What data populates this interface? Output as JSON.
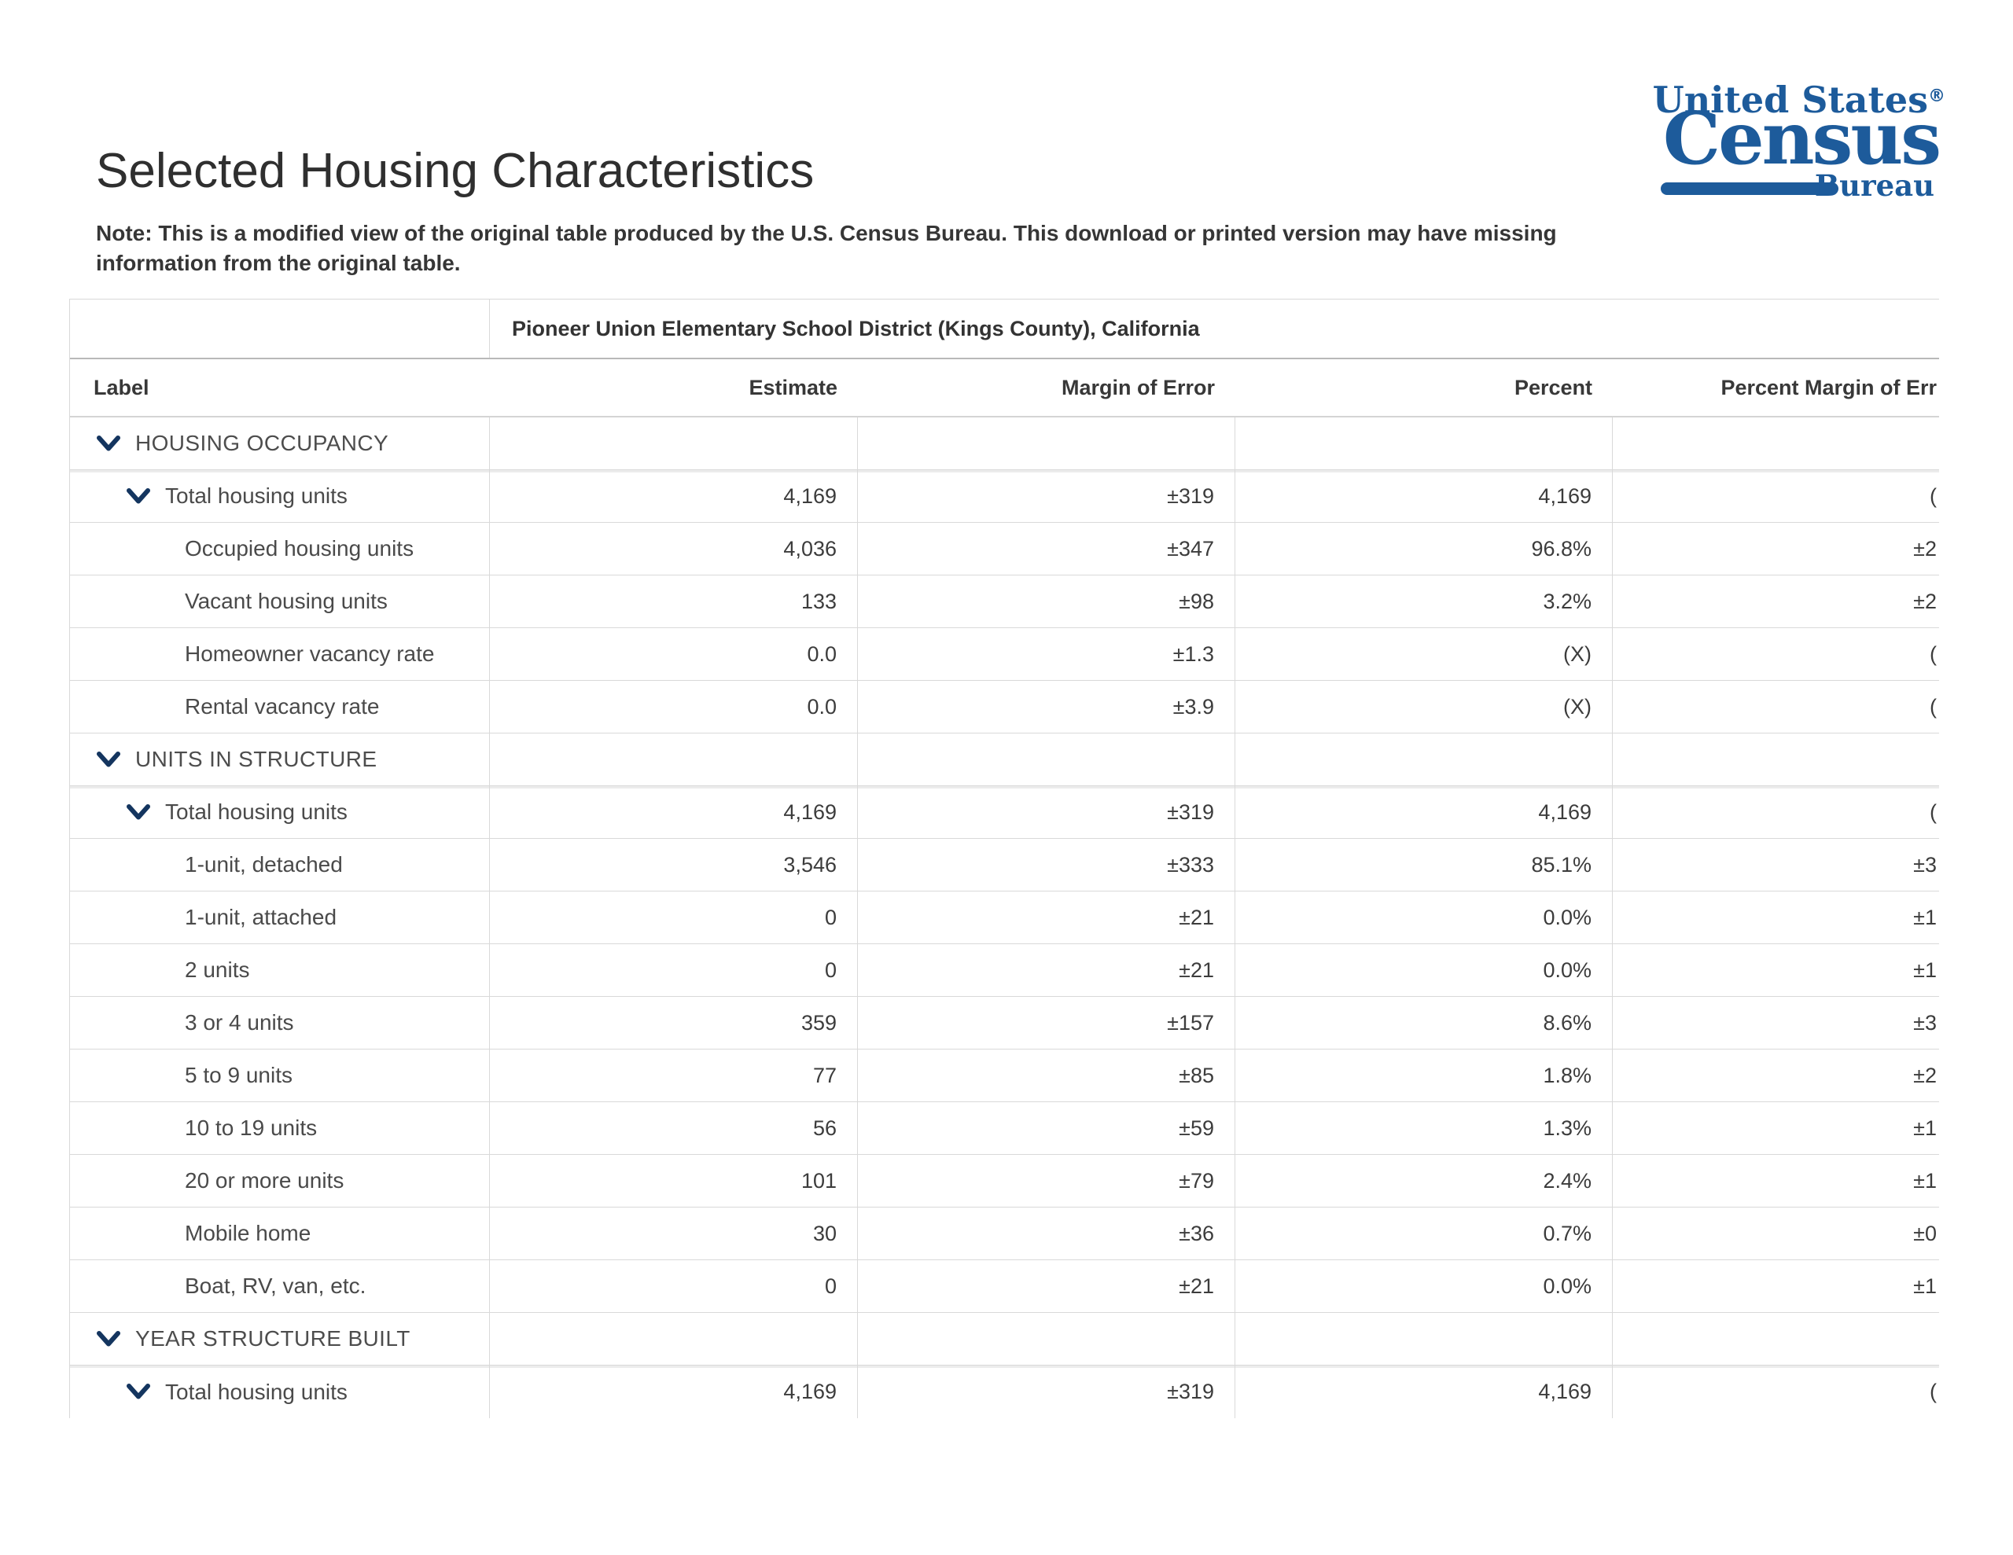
{
  "page": {
    "title": "Selected Housing Characteristics"
  },
  "note": {
    "lines": [
      "Note: This is a modified view of the original table produced by the U.S. Census Bureau. This download or printed version may have missing",
      "information from the original table."
    ]
  },
  "logo": {
    "top": "United States",
    "registered": "®",
    "main": "Census",
    "sub": "Bureau",
    "color": "#1d5b9b"
  },
  "icons": {
    "chevron_color": "#14355f"
  },
  "table": {
    "group_header": "Pioneer Union Elementary School District (Kings County), California",
    "columns": [
      "Label",
      "Estimate",
      "Margin of Error",
      "Percent",
      "Percent Margin of Err"
    ],
    "rows": [
      {
        "label": "HOUSING OCCUPANCY",
        "level": 0,
        "expandable": true,
        "estimate": "",
        "moe": "",
        "percent": "",
        "percent_moe": ""
      },
      {
        "label": "Total housing units",
        "level": 1,
        "expandable": true,
        "estimate": "4,169",
        "moe": "±319",
        "percent": "4,169",
        "percent_moe": "("
      },
      {
        "label": "Occupied housing units",
        "level": 2,
        "expandable": false,
        "estimate": "4,036",
        "moe": "±347",
        "percent": "96.8%",
        "percent_moe": "±2"
      },
      {
        "label": "Vacant housing units",
        "level": 2,
        "expandable": false,
        "estimate": "133",
        "moe": "±98",
        "percent": "3.2%",
        "percent_moe": "±2"
      },
      {
        "label": "Homeowner vacancy rate",
        "level": 2,
        "expandable": false,
        "estimate": "0.0",
        "moe": "±1.3",
        "percent": "(X)",
        "percent_moe": "("
      },
      {
        "label": "Rental vacancy rate",
        "level": 2,
        "expandable": false,
        "estimate": "0.0",
        "moe": "±3.9",
        "percent": "(X)",
        "percent_moe": "("
      },
      {
        "label": "UNITS IN STRUCTURE",
        "level": 0,
        "expandable": true,
        "estimate": "",
        "moe": "",
        "percent": "",
        "percent_moe": ""
      },
      {
        "label": "Total housing units",
        "level": 1,
        "expandable": true,
        "estimate": "4,169",
        "moe": "±319",
        "percent": "4,169",
        "percent_moe": "("
      },
      {
        "label": "1-unit, detached",
        "level": 2,
        "expandable": false,
        "estimate": "3,546",
        "moe": "±333",
        "percent": "85.1%",
        "percent_moe": "±3"
      },
      {
        "label": "1-unit, attached",
        "level": 2,
        "expandable": false,
        "estimate": "0",
        "moe": "±21",
        "percent": "0.0%",
        "percent_moe": "±1"
      },
      {
        "label": "2 units",
        "level": 2,
        "expandable": false,
        "estimate": "0",
        "moe": "±21",
        "percent": "0.0%",
        "percent_moe": "±1"
      },
      {
        "label": "3 or 4 units",
        "level": 2,
        "expandable": false,
        "estimate": "359",
        "moe": "±157",
        "percent": "8.6%",
        "percent_moe": "±3"
      },
      {
        "label": "5 to 9 units",
        "level": 2,
        "expandable": false,
        "estimate": "77",
        "moe": "±85",
        "percent": "1.8%",
        "percent_moe": "±2"
      },
      {
        "label": "10 to 19 units",
        "level": 2,
        "expandable": false,
        "estimate": "56",
        "moe": "±59",
        "percent": "1.3%",
        "percent_moe": "±1"
      },
      {
        "label": "20 or more units",
        "level": 2,
        "expandable": false,
        "estimate": "101",
        "moe": "±79",
        "percent": "2.4%",
        "percent_moe": "±1"
      },
      {
        "label": "Mobile home",
        "level": 2,
        "expandable": false,
        "estimate": "30",
        "moe": "±36",
        "percent": "0.7%",
        "percent_moe": "±0"
      },
      {
        "label": "Boat, RV, van, etc.",
        "level": 2,
        "expandable": false,
        "estimate": "0",
        "moe": "±21",
        "percent": "0.0%",
        "percent_moe": "±1"
      },
      {
        "label": "YEAR STRUCTURE BUILT",
        "level": 0,
        "expandable": true,
        "estimate": "",
        "moe": "",
        "percent": "",
        "percent_moe": ""
      },
      {
        "label": "Total housing units",
        "level": 1,
        "expandable": true,
        "estimate": "4,169",
        "moe": "±319",
        "percent": "4,169",
        "percent_moe": "("
      }
    ]
  }
}
